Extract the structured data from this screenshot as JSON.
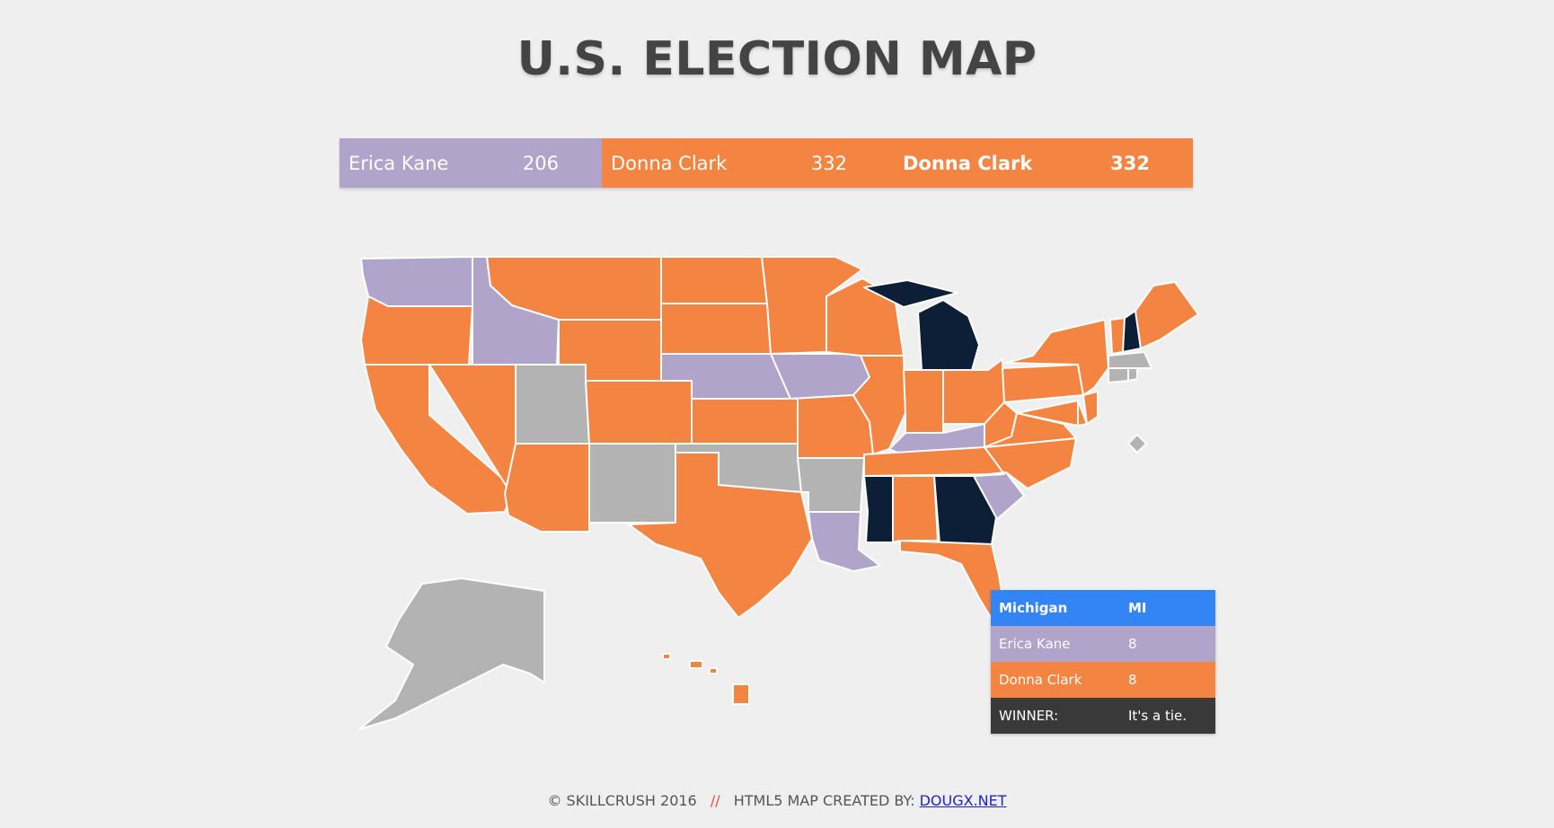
{
  "header": {
    "title": "U.S. ELECTION MAP"
  },
  "colors": {
    "kane": "#b1a4cb",
    "clark": "#f48441",
    "tie": "#0d1e37",
    "undecided": "#b3b3b3",
    "tooltip_head": "#3385f5",
    "tooltip_winner": "#393939"
  },
  "tally": {
    "candidate1": {
      "name": "Erica Kane",
      "votes": "206"
    },
    "candidate2": {
      "name": "Donna Clark",
      "votes": "332"
    },
    "winner": {
      "name": "Donna Clark",
      "votes": "332"
    }
  },
  "map": {
    "states": {
      "WA": "kane",
      "OR": "clark",
      "CA": "clark",
      "ID": "kane",
      "NV": "clark",
      "MT": "clark",
      "WY": "clark",
      "UT": "undecided",
      "AZ": "clark",
      "CO": "clark",
      "NM": "undecided",
      "ND": "clark",
      "SD": "clark",
      "NE": "kane",
      "KS": "clark",
      "OK": "undecided",
      "TX": "clark",
      "MN": "clark",
      "IA": "kane",
      "MO": "clark",
      "AR": "undecided",
      "LA": "kane",
      "WI": "clark",
      "IL": "clark",
      "MI": "tie",
      "IN": "clark",
      "KY": "kane",
      "TN": "clark",
      "MS": "tie",
      "AL": "clark",
      "GA": "tie",
      "FL": "clark",
      "SC": "kane",
      "NC": "clark",
      "OH": "clark",
      "WV": "clark",
      "VA": "clark",
      "PA": "clark",
      "NY": "clark",
      "VT": "clark",
      "NH": "tie",
      "ME": "clark",
      "MA": "undecided",
      "CT": "undecided",
      "RI": "undecided",
      "NJ": "clark",
      "DE": "clark",
      "MD": "clark",
      "DC": "undecided",
      "AK": "undecided",
      "HI": "clark"
    }
  },
  "tooltip": {
    "state": "Michigan",
    "abbr": "MI",
    "rows": [
      {
        "label": "Erica Kane",
        "value": "8"
      },
      {
        "label": "Donna Clark",
        "value": "8"
      }
    ],
    "winner_label": "WINNER:",
    "winner_value": "It's a tie."
  },
  "footer": {
    "copyright": "© SKILLCRUSH 2016",
    "separator": "//",
    "credit": "HTML5 MAP CREATED BY:",
    "link": "DOUGX.NET"
  }
}
